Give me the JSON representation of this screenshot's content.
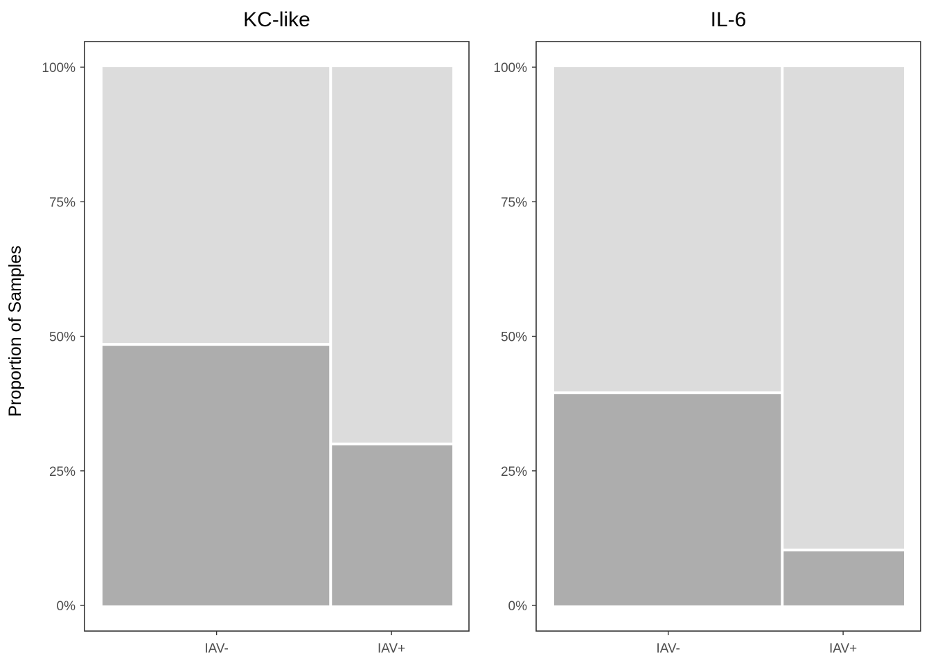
{
  "chart_data": {
    "type": "mosaic",
    "ylabel": "Proportion of Samples",
    "y_ticks": [
      "0%",
      "25%",
      "50%",
      "75%",
      "100%"
    ],
    "ylim": [
      0,
      1
    ],
    "colors": {
      "lower": "#adadad",
      "upper": "#dcdcdc"
    },
    "panels": [
      {
        "title": "KC-like",
        "categories": [
          "IAV-",
          "IAV+"
        ],
        "widths": [
          0.652,
          0.348
        ],
        "lower_fraction": [
          0.485,
          0.3
        ]
      },
      {
        "title": "IL-6",
        "categories": [
          "IAV-",
          "IAV+"
        ],
        "widths": [
          0.652,
          0.348
        ],
        "lower_fraction": [
          0.395,
          0.103
        ]
      }
    ]
  }
}
